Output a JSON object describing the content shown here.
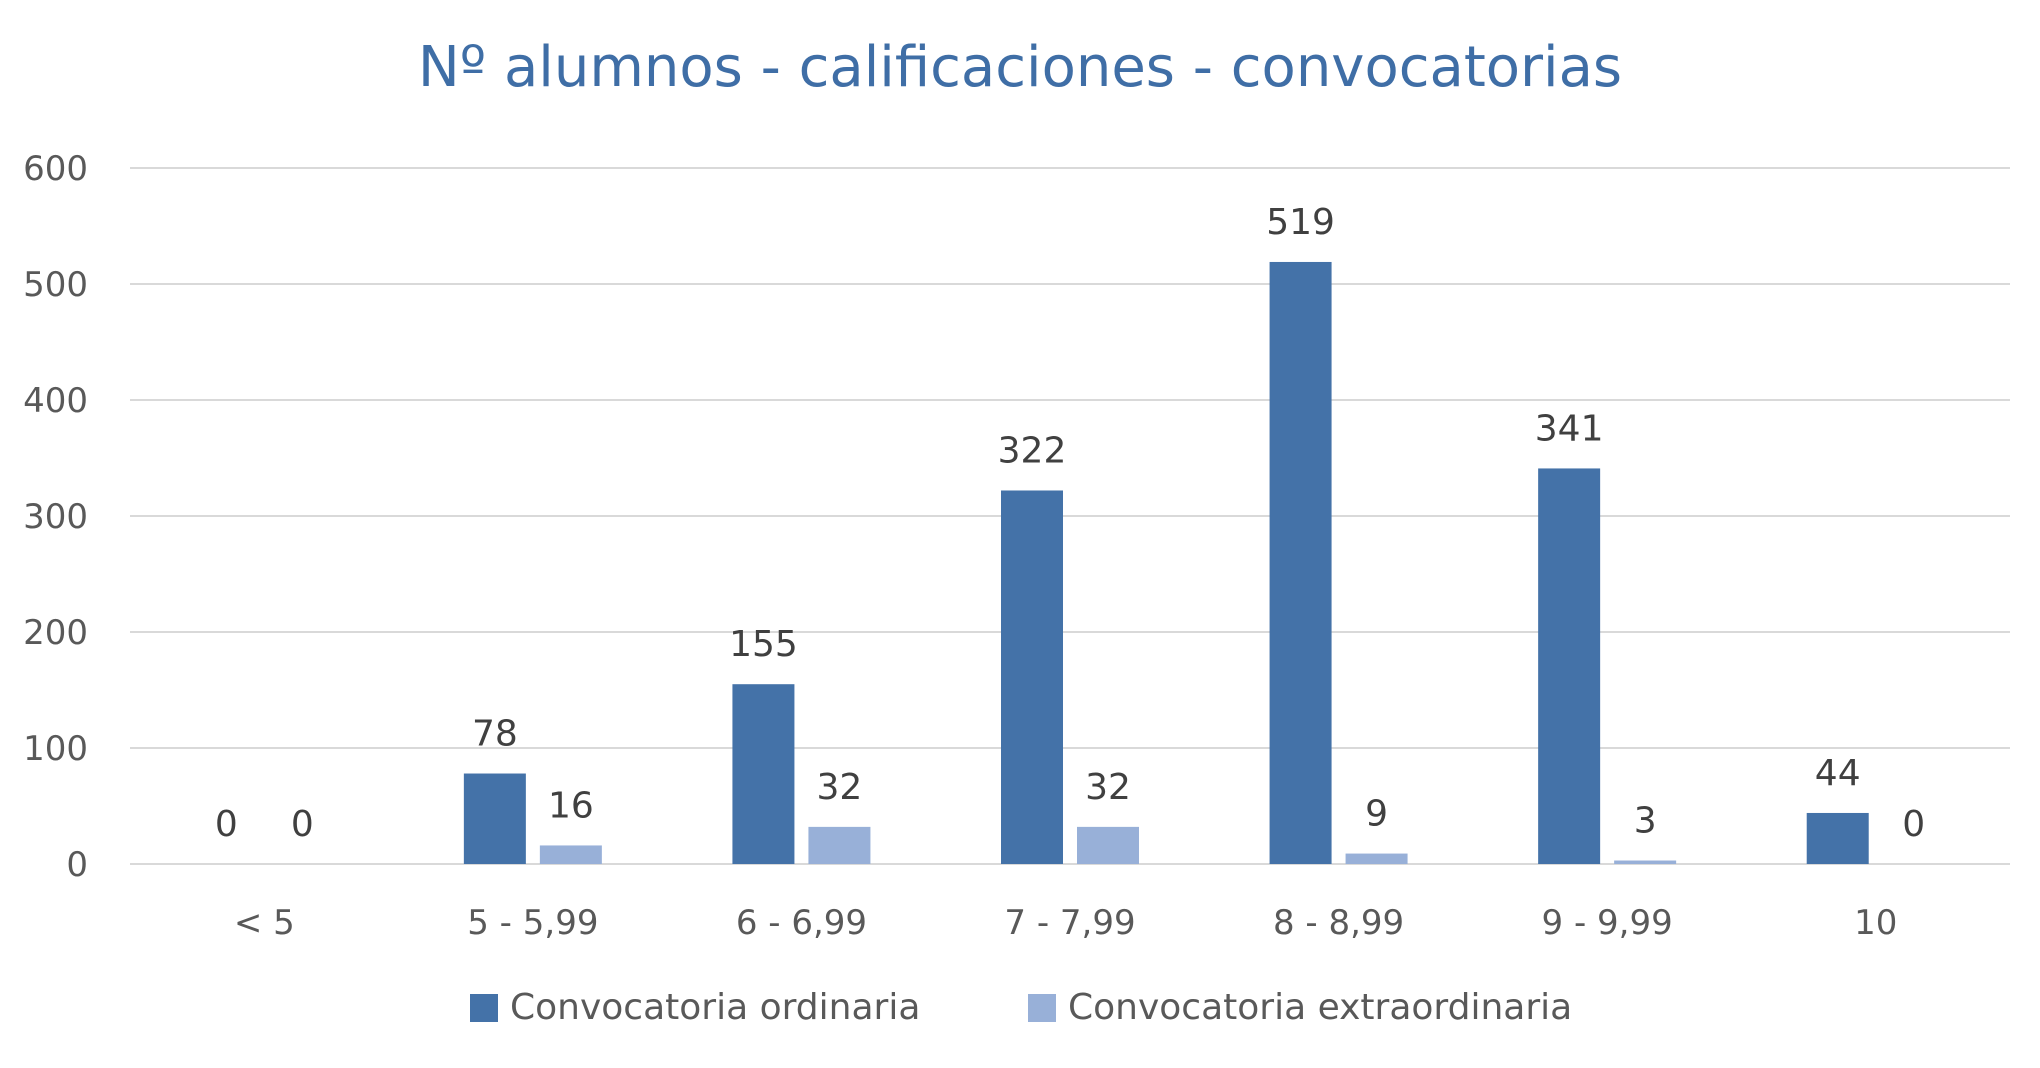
{
  "chart_data": {
    "type": "bar",
    "title": "Nº alumnos - calificaciones - convocatorias",
    "xlabel": "",
    "ylabel": "",
    "categories": [
      "< 5",
      "5 - 5,99",
      "6 - 6,99",
      "7 - 7,99",
      "8 - 8,99",
      "9 - 9,99",
      "10"
    ],
    "series": [
      {
        "name": "Convocatoria ordinaria",
        "values": [
          0,
          78,
          155,
          322,
          519,
          341,
          44
        ],
        "color": "#4472a8"
      },
      {
        "name": "Convocatoria extraordinaria",
        "values": [
          0,
          16,
          32,
          32,
          9,
          3,
          0
        ],
        "color": "#98b0d8"
      }
    ],
    "ylim": [
      0,
      600
    ],
    "yticks": [
      0,
      100,
      200,
      300,
      400,
      500,
      600
    ],
    "grid": true,
    "legend_position": "bottom",
    "data_labels": true
  }
}
